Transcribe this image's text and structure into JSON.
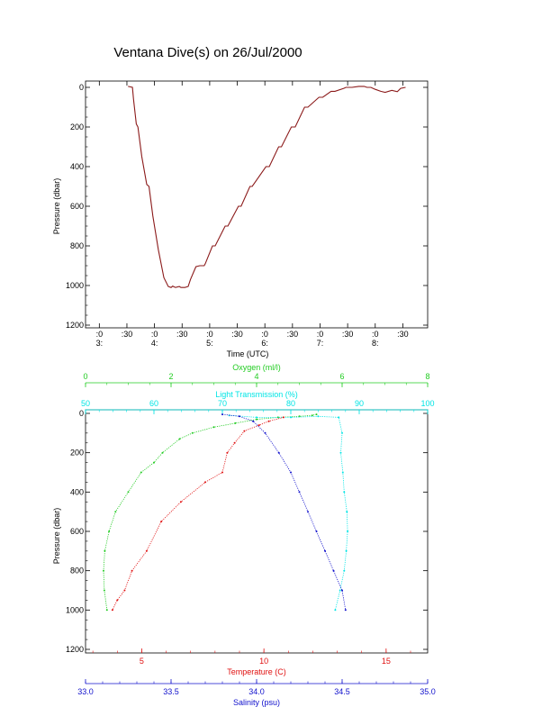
{
  "title": "Ventana Dive(s) on 26/Jul/2000",
  "colors": {
    "black": "#000000",
    "dive_line": "#8b1a1a",
    "oxygen": "#22cc22",
    "light": "#00e5e5",
    "temperature": "#e01010",
    "salinity": "#1010cc"
  },
  "chart_data": [
    {
      "type": "line",
      "title": "",
      "xlabel": "Time (UTC)",
      "ylabel": "Pressure (dbar)",
      "xlim": [
        2.75,
        8.95
      ],
      "ylim": [
        1200,
        -20
      ],
      "y_ticks": [
        0,
        200,
        400,
        600,
        800,
        1000,
        1200
      ],
      "y_tick_labels": [
        "0",
        "200",
        "400",
        "600",
        "800",
        "1000",
        "1200"
      ],
      "x_ticks": [
        {
          "x": 3.0,
          "minute": ":0",
          "hour": "3:"
        },
        {
          "x": 3.5,
          "minute": ":30",
          "hour": ""
        },
        {
          "x": 4.0,
          "minute": ":0",
          "hour": "4:"
        },
        {
          "x": 4.5,
          "minute": ":30",
          "hour": ""
        },
        {
          "x": 5.0,
          "minute": ":0",
          "hour": "5:"
        },
        {
          "x": 5.5,
          "minute": ":30",
          "hour": ""
        },
        {
          "x": 6.0,
          "minute": ":0",
          "hour": "6:"
        },
        {
          "x": 6.5,
          "minute": ":30",
          "hour": ""
        },
        {
          "x": 7.0,
          "minute": ":0",
          "hour": "7:"
        },
        {
          "x": 7.5,
          "minute": ":30",
          "hour": ""
        },
        {
          "x": 8.0,
          "minute": ":0",
          "hour": "8:"
        },
        {
          "x": 8.5,
          "minute": ":30",
          "hour": ""
        }
      ],
      "series": [
        {
          "x": [
            3.52,
            3.6,
            3.62,
            3.67,
            3.7,
            3.77,
            3.86,
            3.9,
            3.97,
            4.07,
            4.17,
            4.25,
            4.3,
            4.33,
            4.38,
            4.45,
            4.48,
            4.55,
            4.61,
            4.65,
            4.75,
            4.82,
            4.9,
            4.92,
            5.05,
            5.1,
            5.28,
            5.33,
            5.52,
            5.57,
            5.73,
            5.77,
            6.02,
            6.08,
            6.25,
            6.3,
            6.48,
            6.55,
            6.72,
            6.78,
            6.98,
            7.05,
            7.2,
            7.27,
            7.43,
            7.47,
            7.58,
            7.7,
            7.8,
            7.85,
            7.92,
            8.0,
            8.1,
            8.18,
            8.3,
            8.4,
            8.46,
            8.55
          ],
          "y": [
            -5,
            0,
            60,
            185,
            200,
            350,
            490,
            500,
            650,
            820,
            960,
            1005,
            1010,
            1003,
            1010,
            1005,
            1010,
            1010,
            1005,
            970,
            905,
            900,
            900,
            890,
            800,
            800,
            700,
            700,
            600,
            600,
            500,
            500,
            400,
            400,
            300,
            300,
            200,
            200,
            100,
            100,
            50,
            50,
            20,
            20,
            5,
            0,
            0,
            -5,
            -5,
            0,
            0,
            10,
            20,
            25,
            15,
            22,
            5,
            0
          ]
        }
      ]
    },
    {
      "type": "scatter",
      "title": "",
      "ylabel": "Pressure (dbar)",
      "ylim": [
        1200,
        0
      ],
      "y_ticks": [
        0,
        200,
        400,
        600,
        800,
        1000,
        1200
      ],
      "y_tick_labels": [
        "0",
        "200",
        "400",
        "600",
        "800",
        "1000",
        "1200"
      ],
      "axes": [
        {
          "label": "Oxygen (ml/l)",
          "range": [
            0,
            8
          ],
          "ticks": [
            0,
            2,
            4,
            6,
            8
          ],
          "tick_labels": [
            "0",
            "2",
            "4",
            "6",
            "8"
          ],
          "position": "top"
        },
        {
          "label": "Light Transmission (%)",
          "range": [
            50,
            100
          ],
          "ticks": [
            50,
            60,
            70,
            80,
            90,
            100
          ],
          "tick_labels": [
            "50",
            "60",
            "70",
            "80",
            "90",
            "100"
          ],
          "position": "top"
        },
        {
          "label": "Temperature (C)",
          "range": [
            2.7,
            16.7
          ],
          "ticks": [
            5,
            10,
            15
          ],
          "tick_labels": [
            "5",
            "10",
            "15"
          ],
          "position": "bottom"
        },
        {
          "label": "Salinity (psu)",
          "range": [
            33.0,
            35.0
          ],
          "ticks": [
            33.0,
            33.5,
            34.0,
            34.5,
            35.0
          ],
          "tick_labels": [
            "33.0",
            "33.5",
            "34.0",
            "34.5",
            "35.0"
          ],
          "position": "bottom"
        }
      ],
      "series": [
        {
          "variable": "Oxygen",
          "x": [
            5.4,
            5.3,
            5.0,
            4.5,
            4.0,
            3.5,
            3.0,
            2.5,
            2.2,
            1.8,
            1.6,
            1.3,
            1.0,
            0.7,
            0.55,
            0.45,
            0.42,
            0.44,
            0.5
          ],
          "y": [
            5,
            10,
            15,
            20,
            30,
            50,
            70,
            100,
            130,
            200,
            250,
            300,
            400,
            500,
            600,
            700,
            800,
            900,
            1000
          ]
        },
        {
          "variable": "Light Transmission",
          "x": [
            71,
            75,
            80,
            84,
            87,
            87.5,
            87.3,
            87.6,
            87.8,
            88.2,
            88.3,
            88.1,
            87.8,
            87.2,
            86.5
          ],
          "y": [
            10,
            20,
            20,
            15,
            20,
            100,
            200,
            300,
            400,
            500,
            600,
            700,
            800,
            900,
            1000
          ]
        },
        {
          "variable": "Temperature",
          "x": [
            10.8,
            10.2,
            9.8,
            9.2,
            8.8,
            8.5,
            8.3,
            7.6,
            6.6,
            5.8,
            5.2,
            4.6,
            4.3,
            4.0,
            3.8
          ],
          "y": [
            20,
            40,
            60,
            90,
            150,
            200,
            300,
            350,
            450,
            550,
            700,
            800,
            900,
            950,
            1000
          ]
        },
        {
          "variable": "Salinity",
          "x": [
            33.8,
            33.9,
            33.98,
            34.05,
            34.13,
            34.2,
            34.25,
            34.3,
            34.35,
            34.4,
            34.45,
            34.5,
            34.52
          ],
          "y": [
            5,
            15,
            40,
            100,
            200,
            300,
            400,
            500,
            600,
            700,
            800,
            900,
            1000
          ]
        }
      ]
    }
  ]
}
